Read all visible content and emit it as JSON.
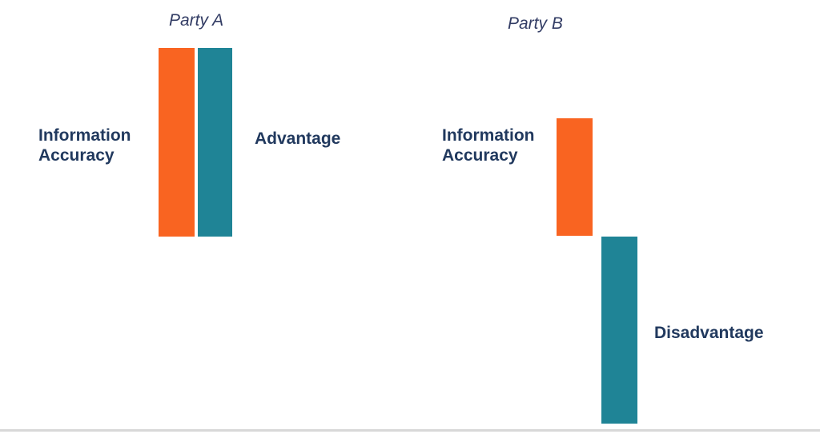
{
  "colors": {
    "orange": "#F96421",
    "teal": "#1F8496",
    "title_text": "#323C64",
    "label_text": "#21395E",
    "divider": "#D8D8D8",
    "background": "#FFFFFF"
  },
  "party_a": {
    "title": "Party A",
    "info_label": "Information Accuracy",
    "outcome_label": "Advantage"
  },
  "party_b": {
    "title": "Party B",
    "info_label": "Information Accuracy",
    "outcome_label": "Disadvantage"
  },
  "chart_data": {
    "type": "bar",
    "categories": [
      "Party A",
      "Party B"
    ],
    "series": [
      {
        "name": "Information Accuracy",
        "color": "#F96421",
        "values": [
          100,
          62
        ]
      },
      {
        "name": "Advantage / Disadvantage",
        "color": "#1F8496",
        "values": [
          100,
          -100
        ]
      }
    ],
    "title": "",
    "xlabel": "",
    "ylabel": "",
    "ylim": [
      -100,
      100
    ],
    "baseline": 0,
    "grid": false,
    "axes_visible": false,
    "legend_position": "none",
    "annotations": [
      {
        "text": "Party A",
        "role": "group-title",
        "style": "italic"
      },
      {
        "text": "Party B",
        "role": "group-title",
        "style": "italic"
      },
      {
        "text": "Information Accuracy",
        "role": "bar-label",
        "target": "Party A orange bar"
      },
      {
        "text": "Advantage",
        "role": "bar-label",
        "target": "Party A teal bar"
      },
      {
        "text": "Information Accuracy",
        "role": "bar-label",
        "target": "Party B orange bar"
      },
      {
        "text": "Disadvantage",
        "role": "bar-label",
        "target": "Party B teal bar (below baseline)"
      }
    ]
  }
}
